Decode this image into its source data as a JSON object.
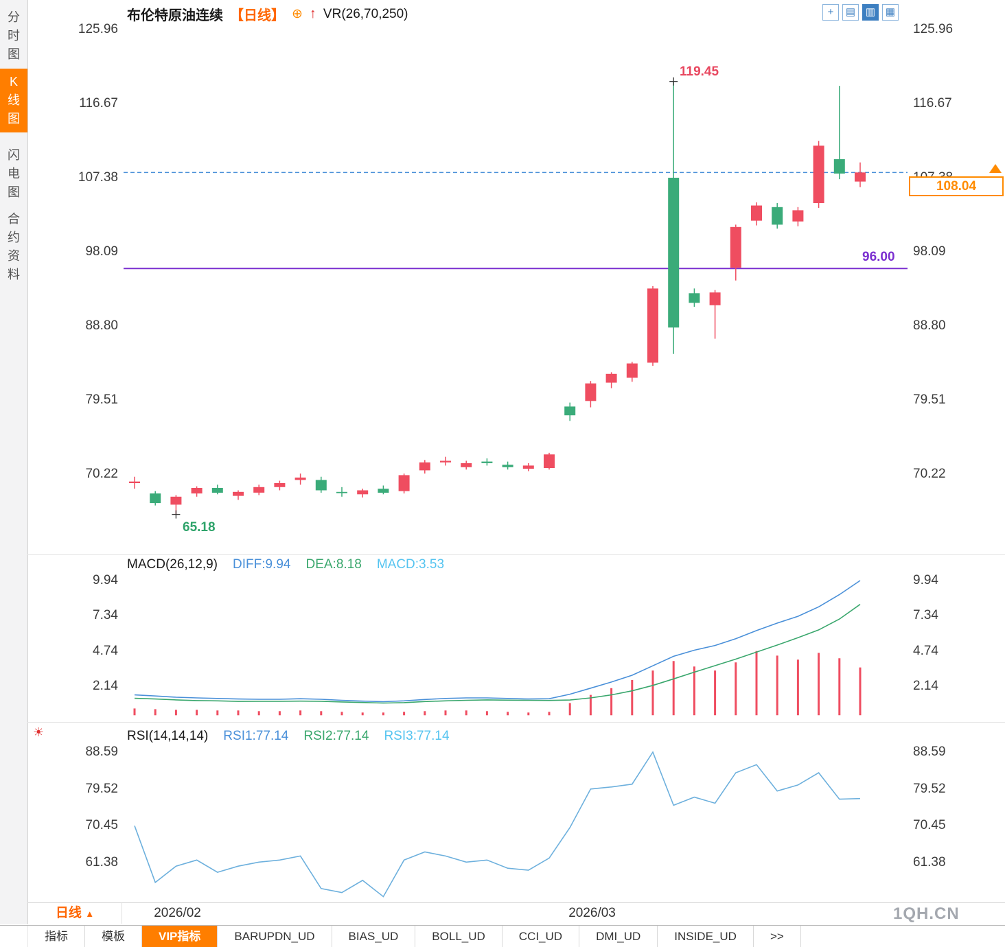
{
  "colors": {
    "up": "#ef4d60",
    "down": "#3aab79",
    "diff": "#4a90d9",
    "dea": "#3aa76d",
    "rsi": "#6db0dd",
    "support": "#7b2fd0",
    "dashed": "#4a90d9",
    "accent": "#ff7e00"
  },
  "sidebar": {
    "items": [
      {
        "label": "分时图"
      },
      {
        "label": "K线图"
      },
      {
        "label": "闪电图"
      },
      {
        "label": "合约资料"
      }
    ]
  },
  "header": {
    "title": "布伦特原油连续",
    "period": "【日线】",
    "plus_icon": "⊕",
    "arrow_icon": "↑",
    "indicator": "VR(26,70,250)"
  },
  "toolbar": {
    "icons": [
      {
        "glyph": "+"
      },
      {
        "glyph": "▤"
      },
      {
        "glyph": "▥"
      },
      {
        "glyph": "▦"
      }
    ]
  },
  "chart_data": [
    {
      "type": "candlestick",
      "title": "布伦特原油连续【日线】",
      "indicator": "VR(26,70,250)",
      "y_ticks": [
        "125.96",
        "116.67",
        "107.38",
        "98.09",
        "88.80",
        "79.51",
        "70.22"
      ],
      "x_labels": [
        {
          "label": "2026/02",
          "index": 1
        },
        {
          "label": "2026/03",
          "index": 21
        }
      ],
      "annotations": {
        "high": "119.45",
        "low": "65.18",
        "support": "96.00",
        "last": "108.04"
      },
      "high_index": 26,
      "low_index": 2,
      "candles": [
        {
          "o": 69.1,
          "h": 69.9,
          "l": 68.4,
          "c": 69.3
        },
        {
          "o": 67.8,
          "h": 68.1,
          "l": 66.3,
          "c": 66.6
        },
        {
          "o": 66.4,
          "h": 67.6,
          "l": 65.18,
          "c": 67.4
        },
        {
          "o": 67.8,
          "h": 68.7,
          "l": 67.4,
          "c": 68.5
        },
        {
          "o": 68.5,
          "h": 68.9,
          "l": 67.7,
          "c": 67.9
        },
        {
          "o": 67.5,
          "h": 68.2,
          "l": 67.0,
          "c": 68.0
        },
        {
          "o": 67.9,
          "h": 68.9,
          "l": 67.6,
          "c": 68.6
        },
        {
          "o": 68.6,
          "h": 69.4,
          "l": 68.2,
          "c": 69.1
        },
        {
          "o": 69.5,
          "h": 70.3,
          "l": 68.9,
          "c": 69.8
        },
        {
          "o": 69.5,
          "h": 69.9,
          "l": 67.9,
          "c": 68.2
        },
        {
          "o": 68.0,
          "h": 68.6,
          "l": 67.4,
          "c": 67.9
        },
        {
          "o": 67.7,
          "h": 68.4,
          "l": 67.3,
          "c": 68.2
        },
        {
          "o": 68.4,
          "h": 68.8,
          "l": 67.7,
          "c": 67.9
        },
        {
          "o": 68.1,
          "h": 70.3,
          "l": 67.8,
          "c": 70.1
        },
        {
          "o": 70.7,
          "h": 72.0,
          "l": 70.3,
          "c": 71.7
        },
        {
          "o": 71.7,
          "h": 72.4,
          "l": 71.3,
          "c": 71.9
        },
        {
          "o": 71.1,
          "h": 71.9,
          "l": 70.8,
          "c": 71.6
        },
        {
          "o": 71.8,
          "h": 72.2,
          "l": 71.3,
          "c": 71.6
        },
        {
          "o": 71.4,
          "h": 71.8,
          "l": 70.8,
          "c": 71.1
        },
        {
          "o": 70.9,
          "h": 71.6,
          "l": 70.6,
          "c": 71.3
        },
        {
          "o": 71.0,
          "h": 72.9,
          "l": 70.8,
          "c": 72.7
        },
        {
          "o": 78.7,
          "h": 79.2,
          "l": 76.9,
          "c": 77.6
        },
        {
          "o": 79.4,
          "h": 81.9,
          "l": 78.6,
          "c": 81.6
        },
        {
          "o": 81.7,
          "h": 83.0,
          "l": 81.0,
          "c": 82.8
        },
        {
          "o": 82.3,
          "h": 84.3,
          "l": 81.8,
          "c": 84.1
        },
        {
          "o": 84.2,
          "h": 93.8,
          "l": 83.8,
          "c": 93.5
        },
        {
          "o": 107.38,
          "h": 119.45,
          "l": 85.3,
          "c": 88.6
        },
        {
          "o": 92.9,
          "h": 93.5,
          "l": 91.2,
          "c": 91.7
        },
        {
          "o": 91.4,
          "h": 93.3,
          "l": 87.2,
          "c": 93.0
        },
        {
          "o": 96.1,
          "h": 101.5,
          "l": 94.5,
          "c": 101.2
        },
        {
          "o": 102.0,
          "h": 104.3,
          "l": 101.4,
          "c": 103.9
        },
        {
          "o": 103.7,
          "h": 104.2,
          "l": 101.0,
          "c": 101.5
        },
        {
          "o": 101.9,
          "h": 103.7,
          "l": 101.3,
          "c": 103.3
        },
        {
          "o": 104.2,
          "h": 112.0,
          "l": 103.6,
          "c": 111.4
        },
        {
          "o": 109.7,
          "h": 118.9,
          "l": 107.2,
          "c": 107.9
        },
        {
          "o": 106.9,
          "h": 109.3,
          "l": 106.2,
          "c": 108.04
        }
      ]
    },
    {
      "type": "line+bar",
      "params": "MACD(26,12,9)",
      "legend": [
        "DIFF:9.94",
        "DEA:8.18",
        "MACD:3.53"
      ],
      "y_ticks": [
        "9.94",
        "7.34",
        "4.74",
        "2.14"
      ],
      "diff": [
        1.5,
        1.42,
        1.33,
        1.28,
        1.24,
        1.2,
        1.18,
        1.18,
        1.22,
        1.18,
        1.1,
        1.04,
        1.0,
        1.06,
        1.16,
        1.24,
        1.28,
        1.28,
        1.24,
        1.2,
        1.22,
        1.55,
        2.0,
        2.45,
        2.95,
        3.65,
        4.35,
        4.8,
        5.15,
        5.65,
        6.25,
        6.8,
        7.3,
        8.0,
        8.9,
        9.94
      ],
      "dea": [
        1.25,
        1.2,
        1.13,
        1.08,
        1.06,
        1.02,
        1.03,
        1.03,
        1.04,
        1.03,
        0.98,
        0.94,
        0.9,
        0.93,
        1.01,
        1.06,
        1.1,
        1.13,
        1.11,
        1.1,
        1.09,
        1.12,
        1.28,
        1.5,
        1.8,
        2.2,
        2.68,
        3.18,
        3.66,
        4.14,
        4.66,
        5.18,
        5.72,
        6.3,
        7.1,
        8.18
      ],
      "hist": [
        0.5,
        0.45,
        0.4,
        0.4,
        0.35,
        0.35,
        0.3,
        0.3,
        0.35,
        0.3,
        0.25,
        0.2,
        0.2,
        0.25,
        0.3,
        0.35,
        0.35,
        0.3,
        0.25,
        0.2,
        0.25,
        0.9,
        1.5,
        2.0,
        2.6,
        3.3,
        4.0,
        3.6,
        3.3,
        3.9,
        4.74,
        4.4,
        4.1,
        4.6,
        4.2,
        3.53
      ]
    },
    {
      "type": "line",
      "params": "RSI(14,14,14)",
      "legend": [
        "RSI1:77.14",
        "RSI2:77.14",
        "RSI3:77.14"
      ],
      "y_ticks": [
        "88.59",
        "79.52",
        "70.45",
        "61.38"
      ],
      "values": [
        70.45,
        56.5,
        60.5,
        62.0,
        59.0,
        60.5,
        61.5,
        62.0,
        63.0,
        55.0,
        54.0,
        57.0,
        53.0,
        62.0,
        64.0,
        63.0,
        61.5,
        62.0,
        60.0,
        59.5,
        62.5,
        70.0,
        79.5,
        80.0,
        80.7,
        88.59,
        75.5,
        77.5,
        76.0,
        83.5,
        85.5,
        79.0,
        80.5,
        83.5,
        77.0,
        77.14
      ]
    }
  ],
  "bottom": {
    "period_label": "日线",
    "period_arrow": "▲",
    "watermark": "1QH.CN"
  },
  "tabbar": {
    "tabs": [
      {
        "label": "指标"
      },
      {
        "label": "模板"
      },
      {
        "label": "VIP指标"
      },
      {
        "label": "BARUPDN_UD"
      },
      {
        "label": "BIAS_UD"
      },
      {
        "label": "BOLL_UD"
      },
      {
        "label": "CCI_UD"
      },
      {
        "label": "DMI_UD"
      },
      {
        "label": "INSIDE_UD"
      },
      {
        "label": ">>"
      }
    ]
  }
}
